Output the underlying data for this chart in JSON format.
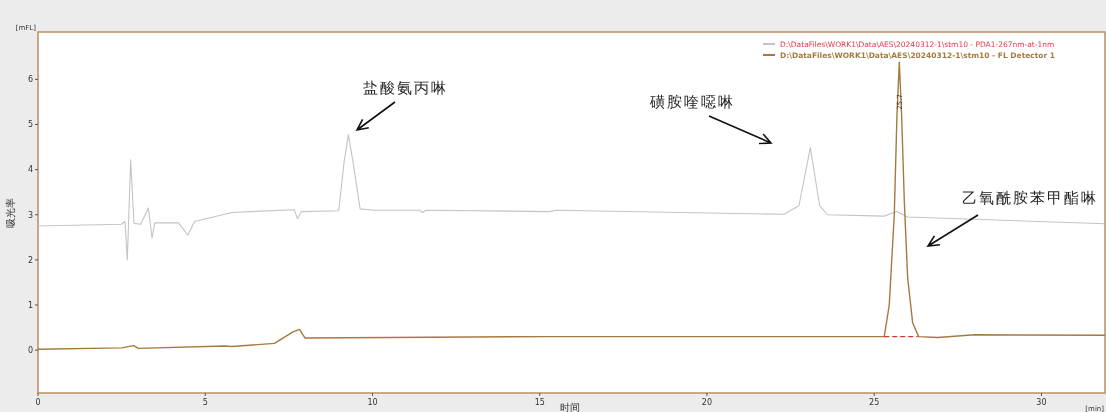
{
  "chart_data": {
    "type": "line",
    "ylabel": "吸光率",
    "xlabel": "时间",
    "legend": "top right",
    "grid": false,
    "marker": "none",
    "xlim": [
      0,
      31.9
    ],
    "ylim": [
      -0.95,
      7.05
    ],
    "xticks": [
      0,
      5,
      10,
      15,
      20,
      25,
      30
    ],
    "yticks": [
      0,
      1,
      2,
      3,
      4,
      5,
      6
    ],
    "series": [
      {
        "name": "D:\\DataFiles\\WORK1\\Data\\AES\\20240312-1\\stm10 - PDA1-267nm-at-1nm",
        "color": "#c4c4c4",
        "x": [
          0,
          2.49,
          2.6,
          2.67,
          2.77,
          2.87,
          3.07,
          3.3,
          3.41,
          3.49,
          4.2,
          4.48,
          4.68,
          5.8,
          6.33,
          7.66,
          7.76,
          7.87,
          8.99,
          9.15,
          9.28,
          9.42,
          9.63,
          10.05,
          11.4,
          11.5,
          11.6,
          15.28,
          15.5,
          22.3,
          22.75,
          23.09,
          23.37,
          23.6,
          25.3,
          25.67,
          26.0,
          31.9
        ],
        "values": [
          2.75,
          2.79,
          2.85,
          2.0,
          4.22,
          2.81,
          2.79,
          3.15,
          2.48,
          2.82,
          2.82,
          2.55,
          2.85,
          3.05,
          3.07,
          3.11,
          2.91,
          3.07,
          3.09,
          4.16,
          4.77,
          4.16,
          3.13,
          3.1,
          3.1,
          3.05,
          3.1,
          3.07,
          3.1,
          3.01,
          3.2,
          4.49,
          3.2,
          3.0,
          2.97,
          3.07,
          2.95,
          2.8
        ]
      },
      {
        "name": "D:\\DataFiles\\WORK1\\Data\\AES\\20240312-1\\stm10 - FL Detector 1",
        "color": "#a57a3f",
        "x": [
          0,
          2.5,
          2.86,
          3.0,
          5.58,
          5.8,
          7.07,
          7.61,
          7.82,
          7.98,
          15.28,
          25.3,
          25.45,
          25.6,
          25.68,
          25.75,
          25.82,
          25.9,
          26.0,
          26.15,
          26.33,
          26.9,
          28.0,
          31.9
        ],
        "values": [
          0.02,
          0.05,
          0.1,
          0.04,
          0.09,
          0.08,
          0.15,
          0.4,
          0.46,
          0.27,
          0.3,
          0.3,
          1.0,
          3.0,
          5.2,
          6.38,
          5.2,
          3.3,
          1.6,
          0.6,
          0.3,
          0.28,
          0.34,
          0.33
        ]
      },
      {
        "type": "line",
        "color": "#e03030",
        "line_style": "dashed",
        "x": [
          25.3,
          26.3
        ],
        "values": [
          0.3,
          0.3
        ]
      }
    ],
    "annotations": [
      "盐酸氨丙啉",
      "磺胺喹噁啉",
      "乙氧酰胺苯甲酯啉",
      {
        "text": "25.7",
        "x": 25.73,
        "y": 5.5
      },
      "[mFL]",
      "[min]"
    ]
  }
}
